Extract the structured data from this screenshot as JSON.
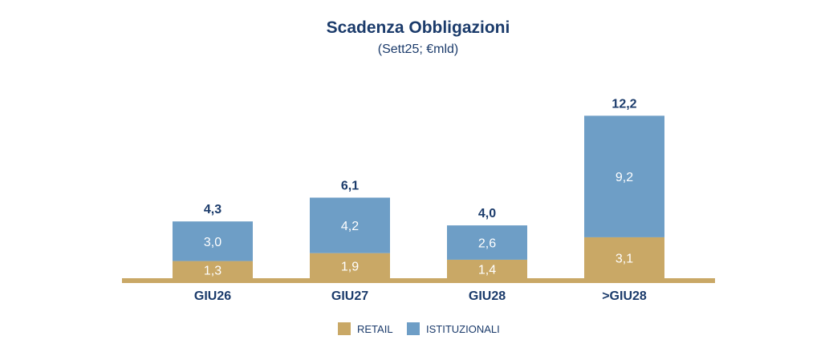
{
  "chart_data": {
    "type": "bar",
    "stacked": true,
    "title": "Scadenza Obbligazioni",
    "subtitle": "(Sett25; €mld)",
    "categories": [
      "GIU26",
      "GIU27",
      "GIU28",
      ">GIU28"
    ],
    "series": [
      {
        "name": "RETAIL",
        "color": "#c9a866",
        "values": [
          1.3,
          1.9,
          1.4,
          3.1
        ],
        "labels": [
          "1,3",
          "1,9",
          "1,4",
          "3,1"
        ]
      },
      {
        "name": "ISTITUZIONALI",
        "color": "#6e9ec6",
        "values": [
          3.0,
          4.2,
          2.6,
          9.2
        ],
        "labels": [
          "3,0",
          "4,2",
          "2,6",
          "9,2"
        ]
      }
    ],
    "totals": [
      4.3,
      6.1,
      4.0,
      12.2
    ],
    "total_labels": [
      "4,3",
      "6,1",
      "4,0",
      "12,2"
    ],
    "ylim": [
      0,
      12.2
    ],
    "grid": false,
    "legend_position": "bottom-center",
    "baseline_color": "#c9a866",
    "text_color": "#1b3b6b"
  }
}
